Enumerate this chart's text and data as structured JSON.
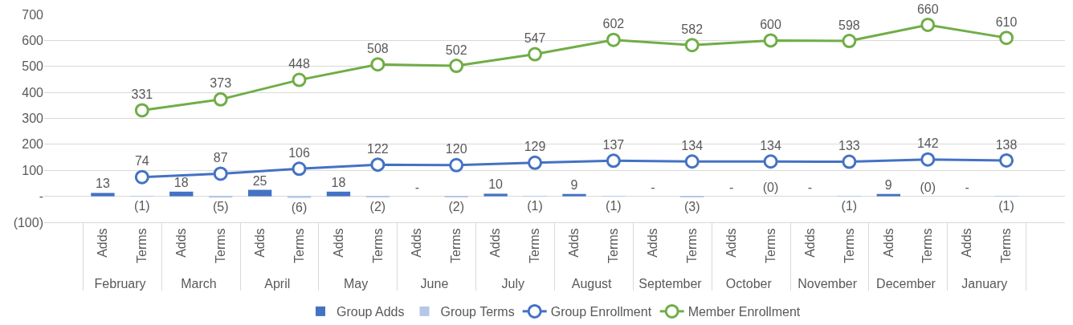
{
  "chart_data": {
    "type": "bar",
    "categories": [
      "Adds",
      "Terms",
      "Adds",
      "Terms",
      "Adds",
      "Terms",
      "Adds",
      "Terms",
      "Adds",
      "Terms",
      "Adds",
      "Terms",
      "Adds",
      "Terms",
      "Adds",
      "Terms",
      "Adds",
      "Terms",
      "Adds",
      "Terms",
      "Adds",
      "Terms",
      "Adds",
      "Terms"
    ],
    "annotations": [
      "February",
      "March",
      "April",
      "May",
      "June",
      "July",
      "August",
      "September",
      "October",
      "November",
      "December",
      "January"
    ],
    "series": [
      {
        "name": "Group Adds",
        "color": "#4472c4",
        "values": [
          13,
          null,
          18,
          null,
          25,
          null,
          18,
          null,
          0,
          null,
          10,
          null,
          9,
          null,
          0,
          null,
          0,
          null,
          0,
          null,
          9,
          null,
          0,
          null
        ],
        "value_labels": [
          "13",
          null,
          "18",
          null,
          "25",
          null,
          "18",
          null,
          "-",
          null,
          "10",
          null,
          "9",
          null,
          "-",
          null,
          "-",
          null,
          "-",
          null,
          "9",
          null,
          "-",
          null
        ]
      },
      {
        "name": "Group Terms",
        "color": "#b4c7e7",
        "values": [
          null,
          -1,
          null,
          -5,
          null,
          -6,
          null,
          -2,
          null,
          -2,
          null,
          -1,
          null,
          -1,
          null,
          -3,
          null,
          0,
          null,
          -1,
          null,
          0,
          null,
          -1
        ],
        "value_labels": [
          null,
          "(1)",
          null,
          "(5)",
          null,
          "(6)",
          null,
          "(2)",
          null,
          "(2)",
          null,
          "(1)",
          null,
          "(1)",
          null,
          "(3)",
          null,
          "(0)",
          null,
          "(1)",
          null,
          "(0)",
          null,
          "(1)"
        ]
      },
      {
        "name": "Group Enrollment",
        "type": "line",
        "color": "#4472c4",
        "values": [
          null,
          74,
          null,
          87,
          null,
          106,
          null,
          122,
          null,
          120,
          null,
          129,
          null,
          137,
          null,
          134,
          null,
          134,
          null,
          133,
          null,
          142,
          null,
          138
        ],
        "value_labels": [
          null,
          "74",
          null,
          "87",
          null,
          "106",
          null,
          "122",
          null,
          "120",
          null,
          "129",
          null,
          "137",
          null,
          "134",
          null,
          "134",
          null,
          "133",
          null,
          "142",
          null,
          "138"
        ]
      },
      {
        "name": "Member Enrollment",
        "type": "line",
        "color": "#70ad47",
        "values": [
          null,
          331,
          null,
          373,
          null,
          448,
          null,
          508,
          null,
          502,
          null,
          547,
          null,
          602,
          null,
          582,
          null,
          600,
          null,
          598,
          null,
          660,
          null,
          610
        ],
        "value_labels": [
          null,
          "331",
          null,
          "373",
          null,
          "448",
          null,
          "508",
          null,
          "502",
          null,
          "547",
          null,
          "602",
          null,
          "582",
          null,
          "600",
          null,
          "598",
          null,
          "660",
          null,
          "610"
        ]
      }
    ],
    "ylim": [
      -100,
      700
    ],
    "yticks": [
      {
        "value": -100,
        "label": "(100)"
      },
      {
        "value": 0,
        "label": "-"
      },
      100,
      200,
      300,
      400,
      500,
      600,
      700
    ],
    "grid": "y",
    "legend": "bottom",
    "marker": "circle",
    "line_style": "solid"
  }
}
